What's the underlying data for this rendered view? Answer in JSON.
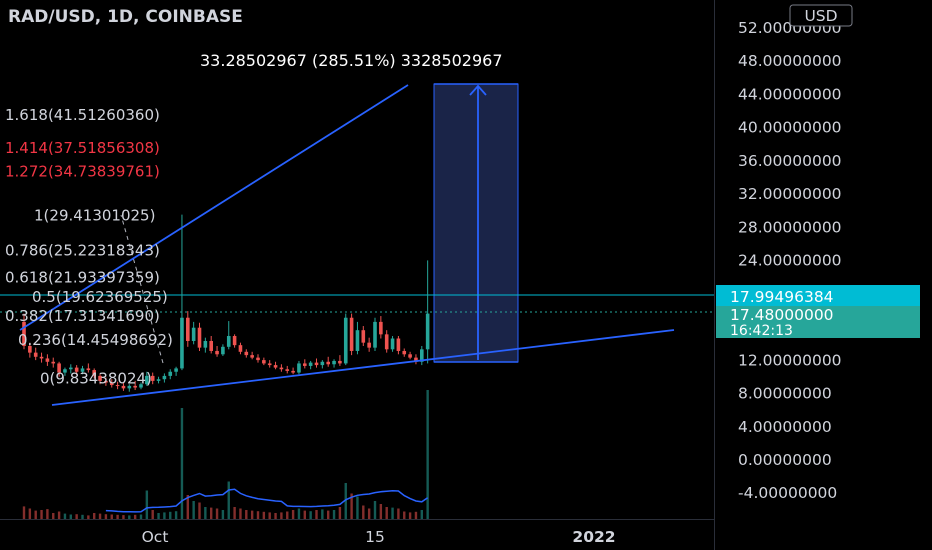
{
  "header": {
    "title": "RAD/USD, 1D, COINBASE",
    "currency_button": "USD"
  },
  "measure_label": "33.28502967 (285.51%) 3328502967",
  "price_axis": {
    "ticks": [
      "52.00000000",
      "48.00000000",
      "44.00000000",
      "40.00000000",
      "36.00000000",
      "32.00000000",
      "28.00000000",
      "24.00000000",
      "12.00000000",
      "8.00000000",
      "4.00000000",
      "0.00000000",
      "-4.00000000"
    ],
    "tick_values": [
      52,
      48,
      44,
      40,
      36,
      32,
      28,
      24,
      12,
      8,
      4,
      0,
      -4
    ],
    "badge_level": "17.99496384",
    "badge_price": "17.48000000",
    "badge_countdown": "16:42:13",
    "badge_level_value": 17.99496384,
    "badge_price_value": 17.48
  },
  "time_axis": {
    "labels": [
      "Oct",
      "15",
      "2022"
    ]
  },
  "fib_levels": [
    {
      "ratio": "1.618",
      "text": "1.618(41.51260360)",
      "price": 41.5126036,
      "color": "#d1d4dc"
    },
    {
      "ratio": "1.414",
      "text": "1.414(37.51856308)",
      "price": 37.51856308,
      "color": "#f23645"
    },
    {
      "ratio": "1.272",
      "text": "1.272(34.73839761)",
      "price": 34.73839761,
      "color": "#f23645"
    },
    {
      "ratio": "1",
      "text": "1(29.41301025)",
      "price": 29.41301025,
      "color": "#d1d4dc"
    },
    {
      "ratio": "0.786",
      "text": "0.786(25.22318343)",
      "price": 25.22318343,
      "color": "#d1d4dc"
    },
    {
      "ratio": "0.618",
      "text": "0.618(21.93397359)",
      "price": 21.93397359,
      "color": "#d1d4dc"
    },
    {
      "ratio": "0.5",
      "text": "0.5(19.62369525)",
      "price": 19.62369525,
      "color": "#d1d4dc"
    },
    {
      "ratio": "0.382",
      "text": "0.382(17.31341690)",
      "price": 17.3134169,
      "color": "#d1d4dc"
    },
    {
      "ratio": "0.236",
      "text": "0.236(14.45498692)",
      "price": 14.45498692,
      "color": "#d1d4dc"
    },
    {
      "ratio": "0",
      "text": "0(9.83438024)",
      "price": 9.83438024,
      "color": "#d1d4dc"
    }
  ],
  "colors": {
    "background": "#000000",
    "up": "#26a69a",
    "down": "#ef5350",
    "trendline": "#2962ff",
    "measure_fill": "#1e2a55",
    "badge_level": "#00bcd4",
    "badge_price": "#26a69a",
    "volume_ma": "#2962ff"
  },
  "chart_data": {
    "type": "candlestick",
    "symbol": "RAD/USD",
    "interval": "1D",
    "exchange": "COINBASE",
    "ylim": [
      -6,
      54
    ],
    "candles": [
      {
        "o": 16.5,
        "h": 17.5,
        "l": 13.2,
        "c": 13.6,
        "v": 0.42
      },
      {
        "o": 13.6,
        "h": 14.0,
        "l": 12.2,
        "c": 12.8,
        "v": 0.35
      },
      {
        "o": 12.8,
        "h": 13.4,
        "l": 11.9,
        "c": 12.3,
        "v": 0.28
      },
      {
        "o": 12.3,
        "h": 12.8,
        "l": 11.6,
        "c": 12.1,
        "v": 0.3
      },
      {
        "o": 12.1,
        "h": 12.6,
        "l": 11.2,
        "c": 11.7,
        "v": 0.33
      },
      {
        "o": 11.7,
        "h": 12.2,
        "l": 11.0,
        "c": 11.5,
        "v": 0.2
      },
      {
        "o": 11.5,
        "h": 11.7,
        "l": 9.9,
        "c": 10.4,
        "v": 0.25
      },
      {
        "o": 10.4,
        "h": 11.0,
        "l": 10.0,
        "c": 10.8,
        "v": 0.18
      },
      {
        "o": 10.8,
        "h": 11.4,
        "l": 10.3,
        "c": 11.0,
        "v": 0.15
      },
      {
        "o": 11.0,
        "h": 11.3,
        "l": 10.1,
        "c": 10.5,
        "v": 0.16
      },
      {
        "o": 10.5,
        "h": 11.2,
        "l": 10.2,
        "c": 10.9,
        "v": 0.14
      },
      {
        "o": 10.9,
        "h": 11.5,
        "l": 10.4,
        "c": 10.7,
        "v": 0.12
      },
      {
        "o": 10.7,
        "h": 10.9,
        "l": 9.7,
        "c": 10.0,
        "v": 0.2
      },
      {
        "o": 10.0,
        "h": 10.3,
        "l": 9.0,
        "c": 9.4,
        "v": 0.18
      },
      {
        "o": 9.4,
        "h": 9.8,
        "l": 8.8,
        "c": 9.2,
        "v": 0.16
      },
      {
        "o": 9.2,
        "h": 9.6,
        "l": 8.6,
        "c": 8.9,
        "v": 0.15
      },
      {
        "o": 8.9,
        "h": 9.3,
        "l": 8.4,
        "c": 8.8,
        "v": 0.14
      },
      {
        "o": 8.8,
        "h": 9.2,
        "l": 8.2,
        "c": 8.5,
        "v": 0.13
      },
      {
        "o": 8.5,
        "h": 9.0,
        "l": 8.1,
        "c": 8.8,
        "v": 0.12
      },
      {
        "o": 8.8,
        "h": 9.4,
        "l": 8.3,
        "c": 8.6,
        "v": 0.14
      },
      {
        "o": 8.6,
        "h": 9.2,
        "l": 8.4,
        "c": 9.0,
        "v": 0.15
      },
      {
        "o": 9.0,
        "h": 10.5,
        "l": 8.8,
        "c": 10.0,
        "v": 0.95
      },
      {
        "o": 10.0,
        "h": 10.4,
        "l": 9.0,
        "c": 9.4,
        "v": 0.3
      },
      {
        "o": 9.4,
        "h": 9.9,
        "l": 9.1,
        "c": 9.6,
        "v": 0.2
      },
      {
        "o": 9.6,
        "h": 10.3,
        "l": 9.2,
        "c": 10.0,
        "v": 0.22
      },
      {
        "o": 10.0,
        "h": 10.8,
        "l": 9.6,
        "c": 10.5,
        "v": 0.24
      },
      {
        "o": 10.5,
        "h": 11.1,
        "l": 10.0,
        "c": 10.9,
        "v": 0.26
      },
      {
        "o": 10.9,
        "h": 29.4,
        "l": 10.7,
        "c": 17.0,
        "v": 3.7
      },
      {
        "o": 17.0,
        "h": 17.8,
        "l": 13.5,
        "c": 14.2,
        "v": 0.8
      },
      {
        "o": 14.2,
        "h": 16.5,
        "l": 13.8,
        "c": 15.8,
        "v": 0.6
      },
      {
        "o": 15.8,
        "h": 16.4,
        "l": 13.0,
        "c": 13.4,
        "v": 0.55
      },
      {
        "o": 13.4,
        "h": 14.6,
        "l": 12.8,
        "c": 14.2,
        "v": 0.4
      },
      {
        "o": 14.2,
        "h": 14.8,
        "l": 12.7,
        "c": 13.0,
        "v": 0.38
      },
      {
        "o": 13.0,
        "h": 13.6,
        "l": 12.3,
        "c": 12.6,
        "v": 0.35
      },
      {
        "o": 12.6,
        "h": 13.8,
        "l": 12.4,
        "c": 13.5,
        "v": 0.3
      },
      {
        "o": 13.5,
        "h": 16.6,
        "l": 13.2,
        "c": 14.8,
        "v": 1.25
      },
      {
        "o": 14.8,
        "h": 15.0,
        "l": 13.4,
        "c": 13.7,
        "v": 0.4
      },
      {
        "o": 13.7,
        "h": 14.0,
        "l": 12.6,
        "c": 12.9,
        "v": 0.35
      },
      {
        "o": 12.9,
        "h": 13.2,
        "l": 12.2,
        "c": 12.5,
        "v": 0.3
      },
      {
        "o": 12.5,
        "h": 12.9,
        "l": 12.0,
        "c": 12.2,
        "v": 0.28
      },
      {
        "o": 12.2,
        "h": 12.6,
        "l": 11.6,
        "c": 11.9,
        "v": 0.26
      },
      {
        "o": 11.9,
        "h": 12.2,
        "l": 11.3,
        "c": 11.5,
        "v": 0.24
      },
      {
        "o": 11.5,
        "h": 11.9,
        "l": 11.0,
        "c": 11.3,
        "v": 0.22
      },
      {
        "o": 11.3,
        "h": 11.7,
        "l": 10.8,
        "c": 11.0,
        "v": 0.2
      },
      {
        "o": 11.0,
        "h": 11.4,
        "l": 10.5,
        "c": 10.8,
        "v": 0.22
      },
      {
        "o": 10.8,
        "h": 11.2,
        "l": 10.3,
        "c": 10.6,
        "v": 0.25
      },
      {
        "o": 10.6,
        "h": 11.0,
        "l": 10.2,
        "c": 10.4,
        "v": 0.3
      },
      {
        "o": 10.4,
        "h": 11.8,
        "l": 10.2,
        "c": 11.5,
        "v": 0.35
      },
      {
        "o": 11.5,
        "h": 12.0,
        "l": 10.9,
        "c": 11.2,
        "v": 0.28
      },
      {
        "o": 11.2,
        "h": 11.8,
        "l": 10.8,
        "c": 11.6,
        "v": 0.26
      },
      {
        "o": 11.6,
        "h": 12.1,
        "l": 11.0,
        "c": 11.3,
        "v": 0.3
      },
      {
        "o": 11.3,
        "h": 11.9,
        "l": 10.9,
        "c": 11.7,
        "v": 0.32
      },
      {
        "o": 11.7,
        "h": 12.3,
        "l": 11.1,
        "c": 11.4,
        "v": 0.28
      },
      {
        "o": 11.4,
        "h": 12.0,
        "l": 11.0,
        "c": 11.8,
        "v": 0.3
      },
      {
        "o": 11.8,
        "h": 12.5,
        "l": 11.2,
        "c": 11.5,
        "v": 0.4
      },
      {
        "o": 11.5,
        "h": 17.5,
        "l": 11.3,
        "c": 17.0,
        "v": 1.2
      },
      {
        "o": 17.0,
        "h": 17.5,
        "l": 12.5,
        "c": 13.0,
        "v": 0.85
      },
      {
        "o": 13.0,
        "h": 16.5,
        "l": 12.6,
        "c": 15.5,
        "v": 0.75
      },
      {
        "o": 15.5,
        "h": 16.0,
        "l": 13.6,
        "c": 14.0,
        "v": 0.45
      },
      {
        "o": 14.0,
        "h": 14.6,
        "l": 12.9,
        "c": 13.4,
        "v": 0.35
      },
      {
        "o": 13.4,
        "h": 17.0,
        "l": 13.0,
        "c": 16.5,
        "v": 0.6
      },
      {
        "o": 16.5,
        "h": 17.2,
        "l": 14.5,
        "c": 15.0,
        "v": 0.5
      },
      {
        "o": 15.0,
        "h": 15.5,
        "l": 12.8,
        "c": 13.2,
        "v": 0.4
      },
      {
        "o": 13.2,
        "h": 14.8,
        "l": 12.9,
        "c": 14.5,
        "v": 0.38
      },
      {
        "o": 14.5,
        "h": 14.8,
        "l": 12.6,
        "c": 13.0,
        "v": 0.35
      },
      {
        "o": 13.0,
        "h": 13.3,
        "l": 12.3,
        "c": 12.6,
        "v": 0.25
      },
      {
        "o": 12.6,
        "h": 12.9,
        "l": 12.0,
        "c": 12.2,
        "v": 0.22
      },
      {
        "o": 12.2,
        "h": 12.6,
        "l": 11.4,
        "c": 11.7,
        "v": 0.24
      },
      {
        "o": 11.7,
        "h": 13.6,
        "l": 11.3,
        "c": 13.2,
        "v": 0.3
      },
      {
        "o": 13.2,
        "h": 23.9,
        "l": 11.5,
        "c": 17.5,
        "v": 4.3
      }
    ]
  }
}
